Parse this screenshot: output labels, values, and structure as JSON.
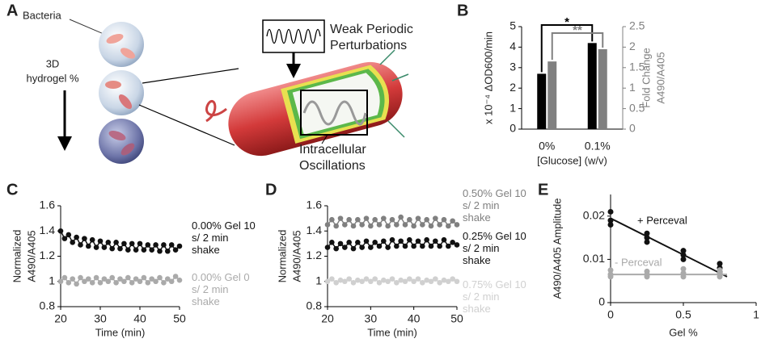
{
  "diagram": {
    "panel": "A",
    "bacteria_label": "Bacteria",
    "hydrogel_label": [
      "3D",
      "hydrogel %"
    ],
    "perturbation_label": [
      "Weak Periodic",
      "Perturbations"
    ],
    "oscillation_label": [
      "Intracellular",
      "Oscillations"
    ]
  },
  "chart_data": [
    {
      "type": "bar",
      "panel": "B",
      "categories": [
        "0%",
        "0.1%"
      ],
      "xlabel": "[Glucose] (w/v)",
      "ylabel": "x 10⁻⁴ ΔOD600/min",
      "y2label": [
        "Fold Change",
        "A490/A405"
      ],
      "series": [
        {
          "color": "#000000",
          "values": [
            2.7,
            4.2
          ]
        },
        {
          "color": "#808080",
          "axis": "y2",
          "values": [
            1.65,
            1.95
          ]
        }
      ],
      "ylim": [
        0,
        5
      ],
      "yticks": [
        0,
        1,
        2,
        3,
        4,
        5
      ],
      "y2lim": [
        0,
        2.5
      ],
      "y2ticks": [
        0,
        0.5,
        1,
        1.5,
        2,
        2.5
      ],
      "annotations": [
        "*",
        "**"
      ]
    },
    {
      "type": "line",
      "panel": "C",
      "xlabel": "Time (min)",
      "ylabel": [
        "Normalized",
        "A490/A405"
      ],
      "x": [
        20,
        21,
        22,
        23,
        24,
        25,
        26,
        27,
        28,
        29,
        30,
        31,
        32,
        33,
        34,
        35,
        36,
        37,
        38,
        39,
        40,
        41,
        42,
        43,
        44,
        45,
        46,
        47,
        48,
        49,
        50
      ],
      "series": [
        {
          "name": "0.00% Gel 10 s/ 2 min shake",
          "color": "#111111",
          "values": [
            1.4,
            1.34,
            1.37,
            1.31,
            1.35,
            1.29,
            1.34,
            1.28,
            1.33,
            1.27,
            1.32,
            1.27,
            1.31,
            1.26,
            1.31,
            1.26,
            1.3,
            1.25,
            1.3,
            1.25,
            1.3,
            1.25,
            1.29,
            1.25,
            1.29,
            1.24,
            1.29,
            1.24,
            1.29,
            1.25,
            1.28
          ]
        },
        {
          "name": "0.00% Gel 0 s/ 2 min shake",
          "color": "#aaaaaa",
          "values": [
            1.0,
            1.03,
            0.99,
            1.02,
            0.98,
            1.03,
            1.0,
            1.02,
            0.99,
            1.03,
            0.99,
            1.02,
            1.0,
            1.03,
            0.99,
            1.02,
            1.0,
            1.03,
            0.99,
            1.02,
            1.0,
            1.03,
            0.99,
            1.02,
            1.0,
            1.03,
            0.99,
            1.02,
            1.0,
            1.04,
            1.01
          ]
        }
      ],
      "xlim": [
        20,
        50
      ],
      "xticks": [
        20,
        30,
        40,
        50
      ],
      "ylim": [
        0.8,
        1.6
      ],
      "yticks": [
        0.8,
        1,
        1.2,
        1.4,
        1.6
      ]
    },
    {
      "type": "line",
      "panel": "D",
      "xlabel": "Time (min)",
      "ylabel": [
        "Normalized",
        "A490/A405"
      ],
      "x": [
        20,
        21,
        22,
        23,
        24,
        25,
        26,
        27,
        28,
        29,
        30,
        31,
        32,
        33,
        34,
        35,
        36,
        37,
        38,
        39,
        40,
        41,
        42,
        43,
        44,
        45,
        46,
        47,
        48,
        49,
        50
      ],
      "series": [
        {
          "name": "0.50% Gel 10 s/ 2 min shake",
          "color": "#808080",
          "values": [
            1.45,
            1.49,
            1.44,
            1.5,
            1.45,
            1.49,
            1.44,
            1.49,
            1.45,
            1.5,
            1.44,
            1.49,
            1.45,
            1.5,
            1.44,
            1.49,
            1.45,
            1.51,
            1.45,
            1.49,
            1.44,
            1.5,
            1.45,
            1.49,
            1.44,
            1.5,
            1.45,
            1.49,
            1.44,
            1.48,
            1.45
          ]
        },
        {
          "name": "0.25% Gel 10 s/ 2 min shake",
          "color": "#111111",
          "values": [
            1.27,
            1.31,
            1.26,
            1.3,
            1.27,
            1.31,
            1.26,
            1.31,
            1.27,
            1.32,
            1.27,
            1.31,
            1.28,
            1.32,
            1.27,
            1.33,
            1.28,
            1.32,
            1.28,
            1.33,
            1.28,
            1.32,
            1.28,
            1.33,
            1.28,
            1.32,
            1.28,
            1.33,
            1.28,
            1.31,
            1.29
          ]
        },
        {
          "name": "0.75% Gel 10 s/ 2 min shake",
          "color": "#d0d0d0",
          "values": [
            1.0,
            1.02,
            0.99,
            1.01,
            1.0,
            1.02,
            0.99,
            1.01,
            1.0,
            1.02,
            1.0,
            1.02,
            0.99,
            1.01,
            1.0,
            1.02,
            0.99,
            1.01,
            1.0,
            1.02,
            1.0,
            1.02,
            0.99,
            1.01,
            1.0,
            1.02,
            0.99,
            1.01,
            1.0,
            1.02,
            1.0
          ]
        }
      ],
      "xlim": [
        20,
        50
      ],
      "xticks": [
        20,
        30,
        40,
        50
      ],
      "ylim": [
        0.8,
        1.6
      ],
      "yticks": [
        0.8,
        1,
        1.2,
        1.4,
        1.6
      ]
    },
    {
      "type": "scatter",
      "panel": "E",
      "xlabel": "Gel %",
      "ylabel": "A490/A405 Amplitude",
      "series": [
        {
          "name": "+ Perceval",
          "color": "#111111",
          "x": [
            0,
            0,
            0,
            0.25,
            0.25,
            0.25,
            0.5,
            0.5,
            0.5,
            0.75,
            0.75,
            0.75
          ],
          "values": [
            0.021,
            0.019,
            0.018,
            0.016,
            0.015,
            0.014,
            0.012,
            0.011,
            0.01,
            0.009,
            0.008,
            0.007
          ],
          "trendline": {
            "x": [
              0,
              0.8
            ],
            "values": [
              0.0195,
              0.006
            ]
          }
        },
        {
          "name": "- Perceval",
          "color": "#aaaaaa",
          "x": [
            0,
            0,
            0,
            0.25,
            0.25,
            0.25,
            0.5,
            0.5,
            0.5,
            0.75,
            0.75,
            0.75
          ],
          "values": [
            0.0075,
            0.0065,
            0.006,
            0.0072,
            0.0065,
            0.006,
            0.0078,
            0.0068,
            0.006,
            0.0075,
            0.0068,
            0.006
          ],
          "trendline": {
            "x": [
              0,
              0.8
            ],
            "values": [
              0.0065,
              0.0065
            ]
          }
        }
      ],
      "xlim": [
        0,
        1
      ],
      "xticks": [
        0,
        0.5,
        1
      ],
      "ylim": [
        0,
        0.025
      ],
      "yticks": [
        0,
        0.01,
        0.02
      ]
    }
  ]
}
